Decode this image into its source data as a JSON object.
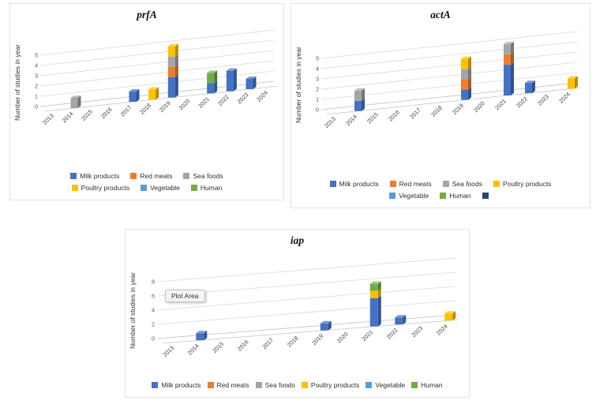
{
  "palette": {
    "Milk products": "#4472C4",
    "Red meats": "#ED7D31",
    "Sea foods": "#A5A5A5",
    "Poultry products": "#FFC000",
    "Vegetable": "#5B9BD5",
    "Human": "#70AD47",
    "": "#264478"
  },
  "chart_data": [
    {
      "type": "bar",
      "variant": "3d-stacked-column",
      "title": "prfA",
      "ylabel": "Number of studies in year",
      "ylim": [
        0,
        5
      ],
      "ytick_step": 1,
      "grid": true,
      "legend_position": "bottom",
      "categories": [
        "2013",
        "2014",
        "2015",
        "2016",
        "2017",
        "2018",
        "2019",
        "2020",
        "2021",
        "2022",
        "2023",
        "2024"
      ],
      "series": [
        {
          "name": "Milk products",
          "color": "#4472C4",
          "values": [
            0,
            0,
            0,
            0,
            1,
            0,
            2,
            0,
            1,
            2,
            1,
            0
          ]
        },
        {
          "name": "Red meats",
          "color": "#ED7D31",
          "values": [
            0,
            0,
            0,
            0,
            0,
            0,
            1,
            0,
            0,
            0,
            0,
            0
          ]
        },
        {
          "name": "Sea foods",
          "color": "#A5A5A5",
          "values": [
            0,
            1,
            0,
            0,
            0,
            0,
            1,
            0,
            0,
            0,
            0,
            0
          ]
        },
        {
          "name": "Poultry products",
          "color": "#FFC000",
          "values": [
            0,
            0,
            0,
            0,
            0,
            1,
            1,
            0,
            0,
            0,
            0,
            0
          ]
        },
        {
          "name": "Vegetable",
          "color": "#5B9BD5",
          "values": [
            0,
            0,
            0,
            0,
            0,
            0,
            0,
            0,
            0,
            0,
            0,
            0
          ]
        },
        {
          "name": "Human",
          "color": "#70AD47",
          "values": [
            0,
            0,
            0,
            0,
            0,
            0,
            0,
            0,
            1,
            0,
            0,
            0
          ]
        }
      ],
      "legend_rows": [
        [
          "Milk products",
          "Red meats",
          "Sea foods"
        ],
        [
          "Poultry products",
          "Vegetable",
          "Human"
        ]
      ]
    },
    {
      "type": "bar",
      "variant": "3d-stacked-column",
      "title": "actA",
      "ylabel": "Number of studies in year",
      "ylim": [
        0,
        5
      ],
      "ytick_step": 1,
      "grid": true,
      "legend_position": "bottom",
      "categories": [
        "2013",
        "2014",
        "2015",
        "2016",
        "2017",
        "2018",
        "2019",
        "2020",
        "2021",
        "2022",
        "2023",
        "2024"
      ],
      "series": [
        {
          "name": "Milk products",
          "color": "#4472C4",
          "values": [
            0,
            1,
            0,
            0,
            0,
            0,
            1,
            0,
            3,
            1,
            0,
            0
          ]
        },
        {
          "name": "Red meats",
          "color": "#ED7D31",
          "values": [
            0,
            0,
            0,
            0,
            0,
            0,
            1,
            0,
            1,
            0,
            0,
            0
          ]
        },
        {
          "name": "Sea foods",
          "color": "#A5A5A5",
          "values": [
            0,
            1,
            0,
            0,
            0,
            0,
            1,
            0,
            1,
            0,
            0,
            0
          ]
        },
        {
          "name": "Poultry products",
          "color": "#FFC000",
          "values": [
            0,
            0,
            0,
            0,
            0,
            0,
            1,
            0,
            0,
            0,
            0,
            1
          ]
        },
        {
          "name": "Vegetable",
          "color": "#5B9BD5",
          "values": [
            0,
            0,
            0,
            0,
            0,
            0,
            0,
            0,
            0,
            0,
            0,
            0
          ]
        },
        {
          "name": "Human",
          "color": "#70AD47",
          "values": [
            0,
            0,
            0,
            0,
            0,
            0,
            0,
            0,
            0,
            0,
            0,
            0
          ]
        }
      ],
      "legend_rows": [
        [
          "Milk products",
          "Red meats",
          "Sea foods",
          "Poultry products"
        ],
        [
          "Vegetable",
          "Human",
          ""
        ]
      ]
    },
    {
      "type": "bar",
      "variant": "3d-stacked-column",
      "title": "iap",
      "ylabel": "Number of studies in year",
      "ylim": [
        0,
        8
      ],
      "ytick_step": 2,
      "grid": true,
      "legend_position": "bottom",
      "plot_area_tooltip": "Plot Area",
      "categories": [
        "2013",
        "2014",
        "2015",
        "2016",
        "2017",
        "2018",
        "2019",
        "2020",
        "2021",
        "2022",
        "2023",
        "2024"
      ],
      "series": [
        {
          "name": "Milk products",
          "color": "#4472C4",
          "values": [
            0,
            1,
            0,
            0,
            0,
            0,
            1,
            0,
            4,
            1,
            0,
            0
          ]
        },
        {
          "name": "Red meats",
          "color": "#ED7D31",
          "values": [
            0,
            0,
            0,
            0,
            0,
            0,
            0,
            0,
            0,
            0,
            0,
            0
          ]
        },
        {
          "name": "Sea foods",
          "color": "#A5A5A5",
          "values": [
            0,
            0,
            0,
            0,
            0,
            0,
            0,
            0,
            0,
            0,
            0,
            0
          ]
        },
        {
          "name": "Poultry products",
          "color": "#FFC000",
          "values": [
            0,
            0,
            0,
            0,
            0,
            0,
            0,
            0,
            1,
            0,
            0,
            1
          ]
        },
        {
          "name": "Vegetable",
          "color": "#5B9BD5",
          "values": [
            0,
            0,
            0,
            0,
            0,
            0,
            0,
            0,
            0,
            0,
            0,
            0
          ]
        },
        {
          "name": "Human",
          "color": "#70AD47",
          "values": [
            0,
            0,
            0,
            0,
            0,
            0,
            0,
            0,
            1,
            0,
            0,
            0
          ]
        }
      ],
      "legend_rows": [
        [
          "Milk products",
          "Red meats",
          "Sea foods",
          "Poultry products",
          "Vegetable",
          "Human"
        ]
      ]
    }
  ]
}
